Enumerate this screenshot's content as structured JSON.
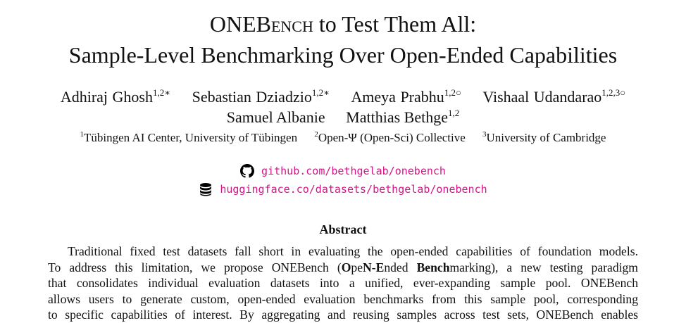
{
  "title": {
    "line1_part1": "ONEB",
    "line1_sc": "ench",
    "line1_part2": " to Test Them All:",
    "line2": "Sample-Level Benchmarking Over Open-Ended Capabilities"
  },
  "authors": [
    {
      "name": "Adhiraj Ghosh",
      "sup": "1,2∗"
    },
    {
      "name": "Sebastian Dziadzio",
      "sup": "1,2∗"
    },
    {
      "name": "Ameya Prabhu",
      "sup": "1,2○"
    },
    {
      "name": "Vishaal Udandarao",
      "sup": "1,2,3○"
    },
    {
      "name": "Samuel Albanie",
      "sup": ""
    },
    {
      "name": "Matthias Bethge",
      "sup": "1,2"
    }
  ],
  "affiliations": [
    {
      "sup": "1",
      "name": "Tübingen AI Center, University of Tübingen"
    },
    {
      "sup": "2",
      "name": "Open-Ψ (Open-Sci) Collective"
    },
    {
      "sup": "3",
      "name": "University of Cambridge"
    }
  ],
  "links": {
    "github": "github.com/bethgelab/onebench",
    "huggingface": "huggingface.co/datasets/bethgelab/onebench"
  },
  "abstract": {
    "heading": "Abstract",
    "line1": "Traditional fixed test datasets fall short in evaluating the open-ended capabilities of foundation models.",
    "line2_pre": "To address this limitation, we propose ONEBench (",
    "line2_b1": "O",
    "line2_t1": "pe",
    "line2_b2": "N-E",
    "line2_t2": "nded ",
    "line2_b3": "Bench",
    "line2_post": "marking), a new testing paradigm",
    "line3": "that consolidates individual evaluation datasets into a unified, ever-expanding sample pool. ONEBench",
    "line4": "allows users to generate custom, open-ended evaluation benchmarks from this sample pool, corresponding",
    "line5": "to specific capabilities of interest. By aggregating and reusing samples across test sets, ONEBench enables"
  }
}
